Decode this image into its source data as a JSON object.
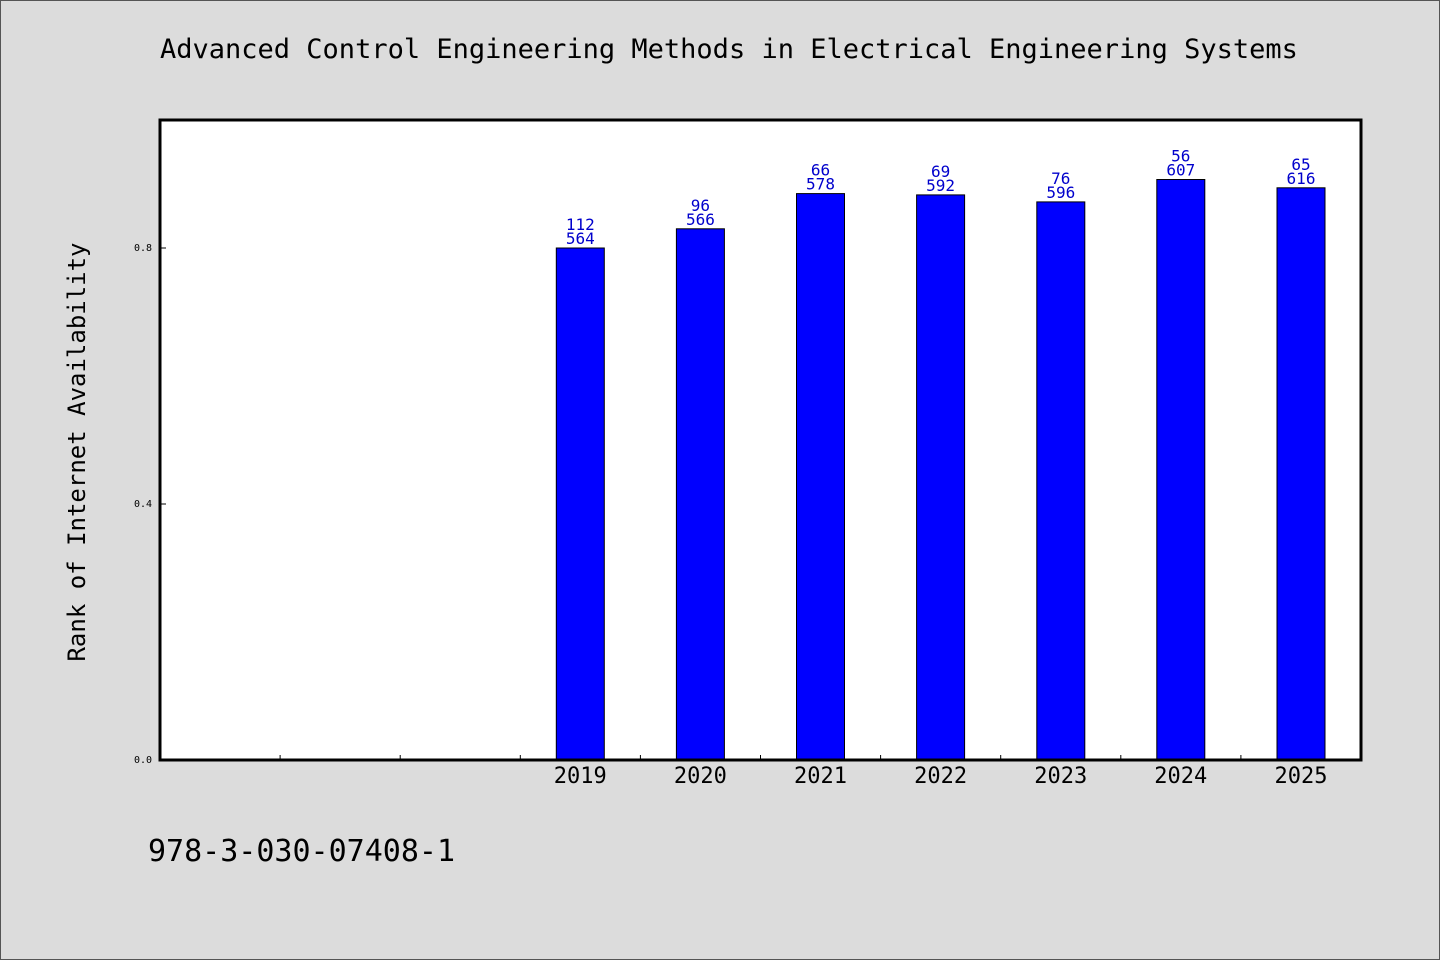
{
  "chart_data": {
    "type": "bar",
    "title": "Advanced Control Engineering Methods in Electrical Engineering Systems",
    "ylabel": "Rank of Internet Availability",
    "xlabel": "",
    "categories": [
      "",
      "",
      "",
      "2019",
      "2020",
      "2021",
      "2022",
      "2023",
      "2024",
      "2025"
    ],
    "values": [
      null,
      null,
      null,
      0.8,
      0.83,
      0.885,
      0.883,
      0.872,
      0.907,
      0.894
    ],
    "data_labels": [
      null,
      null,
      null,
      [
        "112",
        "564"
      ],
      [
        "96",
        "566"
      ],
      [
        "66",
        "578"
      ],
      [
        "69",
        "592"
      ],
      [
        "76",
        "596"
      ],
      [
        "56",
        "607"
      ],
      [
        "65",
        "616"
      ]
    ],
    "yticks": [
      0.0,
      0.4,
      0.8
    ],
    "ytick_labels": [
      "0.0",
      "0.4",
      "0.8"
    ],
    "ylim": [
      0,
      1.0
    ],
    "grid": false,
    "legend": "none",
    "colors": {
      "bar": "#0000ff",
      "bar_edge": "#000000",
      "label": "#0000cc",
      "plot_bg": "#ffffff",
      "page_bg": "#dcdcdc"
    }
  },
  "footer": {
    "isbn": "978-3-030-07408-1"
  }
}
